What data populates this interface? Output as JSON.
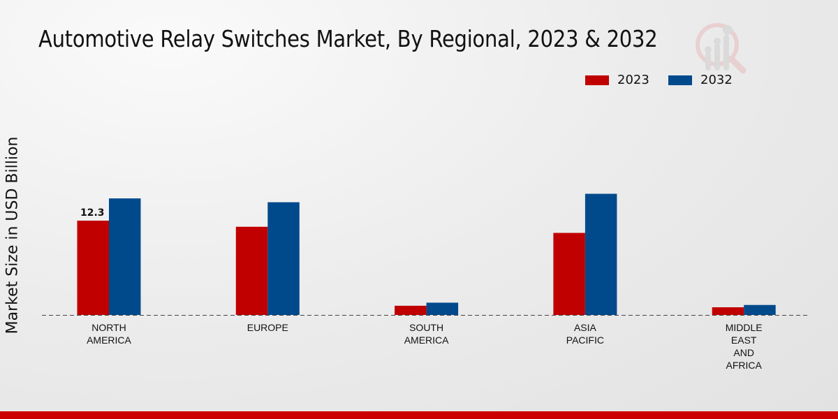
{
  "chart_data": {
    "type": "bar",
    "title": "Automotive Relay Switches Market, By Regional, 2023 & 2032",
    "xlabel": "",
    "ylabel": "Market Size in USD Billion",
    "categories": [
      [
        "NORTH",
        "AMERICA"
      ],
      [
        "EUROPE"
      ],
      [
        "SOUTH",
        "AMERICA"
      ],
      [
        "ASIA",
        "PACIFIC"
      ],
      [
        "MIDDLE",
        "EAST",
        "AND",
        "AFRICA"
      ]
    ],
    "series": [
      {
        "name": "2023",
        "color": "#c00000",
        "values": [
          12.3,
          11.5,
          1.2,
          10.7,
          1.0
        ]
      },
      {
        "name": "2032",
        "color": "#004a8c",
        "values": [
          15.2,
          14.7,
          1.6,
          15.8,
          1.3
        ]
      }
    ],
    "data_labels": [
      {
        "series": 0,
        "index": 0,
        "text": "12.3"
      }
    ],
    "ylim": [
      0,
      20
    ],
    "grid": false,
    "legend_position": "top-right"
  }
}
